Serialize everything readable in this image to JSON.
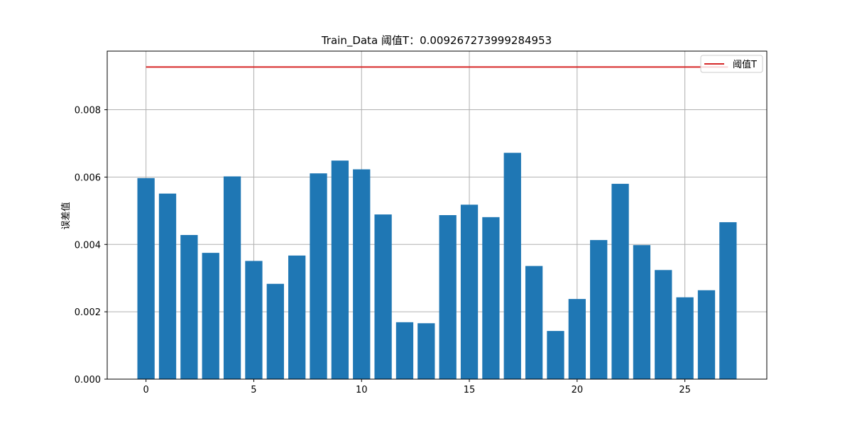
{
  "chart_data": {
    "type": "bar",
    "title": "Train_Data  阈值T：0.009267273999284953",
    "xlabel": "",
    "ylabel": "误差值",
    "x": [
      0,
      1,
      2,
      3,
      4,
      5,
      6,
      7,
      8,
      9,
      10,
      11,
      12,
      13,
      14,
      15,
      16,
      17,
      18,
      19,
      20,
      21,
      22,
      23,
      24,
      25,
      26,
      27
    ],
    "values": [
      0.00597,
      0.00551,
      0.00428,
      0.00375,
      0.00602,
      0.00351,
      0.00283,
      0.00367,
      0.00611,
      0.00649,
      0.00623,
      0.00489,
      0.00169,
      0.00166,
      0.00487,
      0.00518,
      0.00481,
      0.00672,
      0.00336,
      0.00143,
      0.00238,
      0.00413,
      0.0058,
      0.00398,
      0.00324,
      0.00243,
      0.00264,
      0.00466
    ],
    "bar_color": "#1f77b4",
    "threshold": {
      "name": "阈值T",
      "value": 0.009267273999284953,
      "x_range": [
        0,
        27
      ],
      "color": "#d62728"
    },
    "xlim": [
      -1.8,
      28.8
    ],
    "ylim": [
      0,
      0.00974
    ],
    "xticks": [
      0,
      5,
      10,
      15,
      20,
      25
    ],
    "xtick_labels": [
      "0",
      "5",
      "10",
      "15",
      "20",
      "25"
    ],
    "yticks": [
      0,
      0.002,
      0.004,
      0.006,
      0.008
    ],
    "ytick_labels": [
      "0.000",
      "0.002",
      "0.004",
      "0.006",
      "0.008"
    ],
    "grid": true,
    "legend": "top-right"
  }
}
